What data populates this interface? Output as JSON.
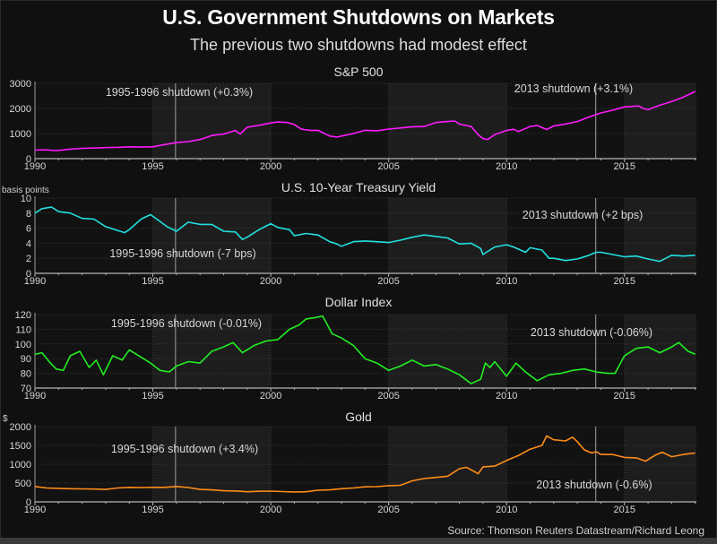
{
  "title": "U.S. Government Shutdowns on Markets",
  "subtitle": "The previous two shutdowns had modest effect",
  "source": "Source: Thomson Reuters Datastream/Richard Leong",
  "shutdowns": [
    {
      "name": "1995-1996 shutdown",
      "date": 1995.96
    },
    {
      "name": "2013 shutdown",
      "date": 2013.78
    }
  ],
  "x_axis": {
    "ticks": [
      1990,
      1995,
      2000,
      2005,
      2010,
      2015
    ],
    "tick_labels": [
      "1990",
      "1995",
      "2000",
      "2005",
      "2010",
      "2015"
    ],
    "range": [
      1990,
      2018.05
    ],
    "shaded_bands": [
      [
        1995,
        2000
      ],
      [
        2005,
        2010
      ],
      [
        2015,
        2018.05
      ]
    ]
  },
  "chart_data": [
    {
      "type": "line",
      "title": "S&P 500",
      "ylabel": "",
      "color": "#ff1aff",
      "ylim": [
        0,
        3000
      ],
      "yticks": [
        0,
        1000,
        2000,
        3000
      ],
      "ytick_labels": [
        "0",
        "1000",
        "2000",
        "3000"
      ],
      "annotations": [
        "1995-1996 shutdown (+0.3%)",
        "2013 shutdown (+3.1%)"
      ],
      "x": [
        1990,
        1990.5,
        1990.8,
        1991,
        1991.5,
        1992,
        1992.5,
        1993,
        1993.5,
        1994,
        1994.5,
        1995,
        1995.5,
        1996,
        1996.5,
        1997,
        1997.5,
        1998,
        1998.5,
        1998.7,
        1999,
        1999.5,
        2000,
        2000.3,
        2000.7,
        2001,
        2001.3,
        2001.7,
        2002,
        2002.5,
        2002.8,
        2003,
        2003.5,
        2004,
        2004.5,
        2005,
        2005.5,
        2006,
        2006.5,
        2007,
        2007.5,
        2007.8,
        2008,
        2008.5,
        2008.8,
        2009,
        2009.2,
        2009.5,
        2010,
        2010.3,
        2010.5,
        2011,
        2011.3,
        2011.7,
        2012,
        2012.5,
        2013,
        2013.5,
        2014,
        2014.5,
        2015,
        2015.3,
        2015.6,
        2015.8,
        2016,
        2016.5,
        2017,
        2017.5,
        2018
      ],
      "y": [
        340,
        350,
        320,
        330,
        380,
        410,
        420,
        440,
        450,
        470,
        460,
        470,
        560,
        640,
        680,
        760,
        920,
        980,
        1120,
        980,
        1250,
        1330,
        1420,
        1460,
        1440,
        1360,
        1170,
        1120,
        1130,
        900,
        860,
        900,
        1000,
        1130,
        1110,
        1180,
        1220,
        1270,
        1280,
        1440,
        1480,
        1500,
        1380,
        1280,
        950,
        800,
        760,
        960,
        1120,
        1170,
        1080,
        1280,
        1320,
        1160,
        1300,
        1380,
        1480,
        1660,
        1820,
        1930,
        2060,
        2080,
        2100,
        2000,
        1950,
        2130,
        2280,
        2450,
        2680
      ]
    },
    {
      "type": "line",
      "title": "U.S. 10-Year Treasury Yield",
      "ylabel": "basis points",
      "color": "#22e0e0",
      "ylim": [
        0,
        10
      ],
      "yticks": [
        0,
        2,
        4,
        6,
        8,
        10
      ],
      "ytick_labels": [
        "0",
        "2",
        "4",
        "6",
        "8",
        "10"
      ],
      "annotations": [
        "1995-1996 shutdown (-7 bps)",
        "2013 shutdown (+2 bps)"
      ],
      "x": [
        1990,
        1990.3,
        1990.7,
        1991,
        1991.5,
        1992,
        1992.5,
        1993,
        1993.5,
        1993.8,
        1994,
        1994.5,
        1994.9,
        1995.3,
        1995.6,
        1996,
        1996.5,
        1997,
        1997.5,
        1998,
        1998.5,
        1998.8,
        1999,
        1999.5,
        2000,
        2000.3,
        2000.8,
        2001,
        2001.5,
        2002,
        2002.5,
        2002.8,
        2003,
        2003.5,
        2004,
        2004.5,
        2005,
        2005.5,
        2006,
        2006.5,
        2007,
        2007.5,
        2008,
        2008.5,
        2008.9,
        2009,
        2009.5,
        2010,
        2010.3,
        2010.8,
        2011,
        2011.5,
        2011.8,
        2012,
        2012.5,
        2013,
        2013.4,
        2013.8,
        2014,
        2014.5,
        2015,
        2015.5,
        2016,
        2016.5,
        2017,
        2017.5,
        2018
      ],
      "y": [
        8.0,
        8.6,
        8.8,
        8.2,
        8.0,
        7.3,
        7.2,
        6.2,
        5.7,
        5.4,
        5.8,
        7.2,
        7.8,
        6.9,
        6.2,
        5.6,
        6.8,
        6.5,
        6.5,
        5.6,
        5.5,
        4.5,
        4.8,
        5.8,
        6.6,
        6.1,
        5.8,
        5.0,
        5.3,
        5.1,
        4.2,
        3.9,
        3.6,
        4.2,
        4.3,
        4.2,
        4.1,
        4.4,
        4.8,
        5.1,
        4.9,
        4.7,
        3.9,
        4.0,
        3.3,
        2.5,
        3.5,
        3.8,
        3.5,
        2.8,
        3.4,
        3.1,
        2.0,
        2.0,
        1.7,
        1.9,
        2.3,
        2.8,
        2.8,
        2.5,
        2.2,
        2.3,
        1.9,
        1.6,
        2.4,
        2.3,
        2.4
      ]
    },
    {
      "type": "line",
      "title": "Dollar Index",
      "ylabel": "",
      "color": "#22ee22",
      "ylim": [
        70,
        120
      ],
      "yticks": [
        70,
        80,
        90,
        100,
        110,
        120
      ],
      "ytick_labels": [
        "70",
        "80",
        "90",
        "100",
        "110",
        "120"
      ],
      "annotations": [
        "1995-1996 shutdown (-0.01%)",
        "2013 shutdown (-0.06%)"
      ],
      "x": [
        1990,
        1990.3,
        1990.6,
        1990.9,
        1991.2,
        1991.5,
        1991.9,
        1992.3,
        1992.6,
        1992.9,
        1993.3,
        1993.7,
        1994,
        1994.5,
        1994.9,
        1995.3,
        1995.7,
        1996,
        1996.5,
        1997,
        1997.5,
        1998,
        1998.4,
        1998.8,
        1999.3,
        1999.8,
        2000.3,
        2000.8,
        2001.2,
        2001.5,
        2001.9,
        2002.2,
        2002.6,
        2003,
        2003.5,
        2004,
        2004.5,
        2005,
        2005.5,
        2006,
        2006.5,
        2007,
        2007.5,
        2008,
        2008.5,
        2008.9,
        2009.1,
        2009.3,
        2009.5,
        2010,
        2010.4,
        2010.8,
        2011.3,
        2011.8,
        2012.3,
        2012.8,
        2013.3,
        2013.8,
        2014.3,
        2014.6,
        2015,
        2015.5,
        2016,
        2016.5,
        2017,
        2017.3,
        2017.7,
        2018
      ],
      "y": [
        93,
        94,
        88,
        83,
        82,
        92,
        95,
        84,
        89,
        79,
        92,
        89,
        96,
        91,
        87,
        82,
        81,
        85,
        88,
        87,
        95,
        98,
        101,
        94,
        99,
        102,
        103,
        110,
        113,
        117,
        118,
        119,
        107,
        104,
        99,
        90,
        87,
        82,
        85,
        89,
        85,
        86,
        83,
        79,
        73,
        76,
        87,
        84,
        88,
        78,
        87,
        81,
        75,
        79,
        80,
        82,
        83,
        81,
        80,
        80,
        92,
        97,
        98,
        94,
        98,
        101,
        95,
        93
      ]
    },
    {
      "type": "line",
      "title": "Gold",
      "ylabel": "$",
      "color": "#ff8c1a",
      "ylim": [
        0,
        2000
      ],
      "yticks": [
        0,
        500,
        1000,
        1500,
        2000
      ],
      "ytick_labels": [
        "0",
        "500",
        "1000",
        "1500",
        "2000"
      ],
      "annotations": [
        "1995-1996 shutdown (+3.4%)",
        "2013 shutdown (-0.6%)"
      ],
      "x": [
        1990,
        1990.5,
        1991,
        1991.5,
        1992,
        1992.5,
        1993,
        1993.5,
        1994,
        1994.5,
        1995,
        1995.5,
        1996,
        1996.5,
        1997,
        1997.5,
        1998,
        1998.5,
        1999,
        1999.5,
        2000,
        2000.5,
        2001,
        2001.5,
        2002,
        2002.5,
        2003,
        2003.5,
        2004,
        2004.5,
        2005,
        2005.5,
        2006,
        2006.5,
        2007,
        2007.5,
        2008,
        2008.3,
        2008.8,
        2009,
        2009.5,
        2010,
        2010.5,
        2011,
        2011.5,
        2011.7,
        2012,
        2012.5,
        2012.8,
        2013,
        2013.3,
        2013.6,
        2013.8,
        2014,
        2014.5,
        2015,
        2015.5,
        2015.9,
        2016.3,
        2016.6,
        2017,
        2017.5,
        2018
      ],
      "y": [
        410,
        370,
        360,
        350,
        345,
        340,
        330,
        370,
        385,
        380,
        385,
        385,
        410,
        380,
        330,
        320,
        295,
        290,
        270,
        280,
        285,
        275,
        265,
        270,
        310,
        320,
        350,
        370,
        400,
        405,
        430,
        440,
        560,
        620,
        650,
        680,
        880,
        920,
        750,
        930,
        950,
        1100,
        1230,
        1400,
        1500,
        1750,
        1650,
        1620,
        1720,
        1600,
        1380,
        1300,
        1330,
        1260,
        1260,
        1180,
        1170,
        1080,
        1240,
        1320,
        1200,
        1260,
        1300
      ]
    }
  ]
}
